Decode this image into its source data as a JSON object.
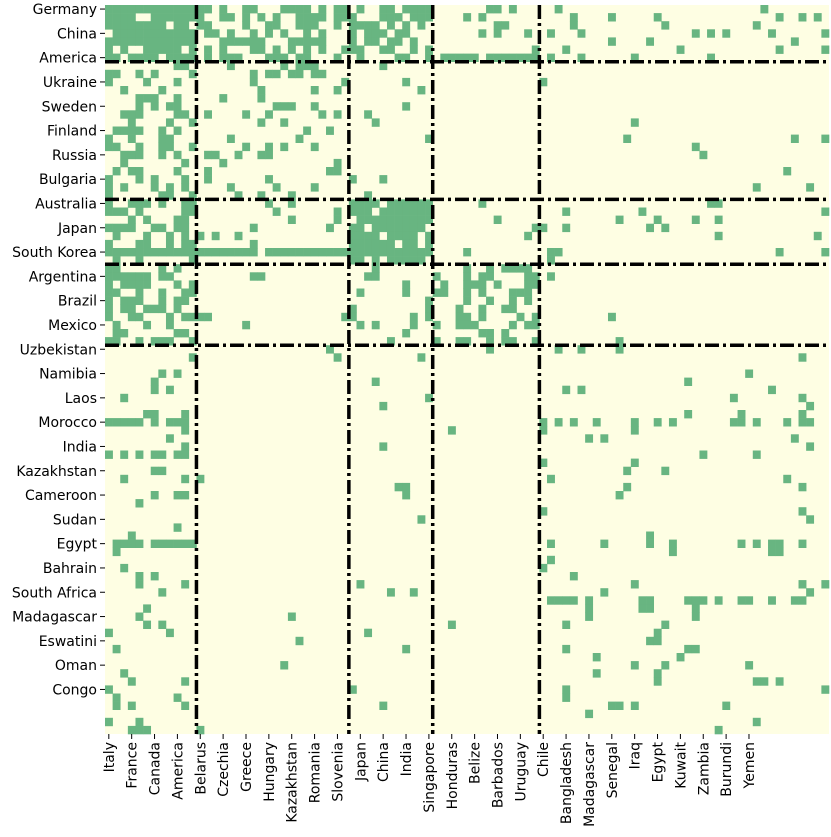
{
  "chart_data": {
    "type": "heatmap",
    "title": "",
    "xlabel": "",
    "ylabel": "",
    "colors": {
      "background": "#fefee3",
      "filled": "#68b581",
      "separator": "#000000"
    },
    "n_rows": 90,
    "n_cols": 95,
    "row_tick_labels": [
      {
        "row": 0,
        "label": "Germany"
      },
      {
        "row": 3,
        "label": "China"
      },
      {
        "row": 6,
        "label": "America"
      },
      {
        "row": 9,
        "label": "Ukraine"
      },
      {
        "row": 12,
        "label": "Sweden"
      },
      {
        "row": 15,
        "label": "Finland"
      },
      {
        "row": 18,
        "label": "Russia"
      },
      {
        "row": 21,
        "label": "Bulgaria"
      },
      {
        "row": 24,
        "label": "Australia"
      },
      {
        "row": 27,
        "label": "Japan"
      },
      {
        "row": 30,
        "label": "South Korea"
      },
      {
        "row": 33,
        "label": "Argentina"
      },
      {
        "row": 36,
        "label": "Brazil"
      },
      {
        "row": 39,
        "label": "Mexico"
      },
      {
        "row": 42,
        "label": "Uzbekistan"
      },
      {
        "row": 45,
        "label": "Namibia"
      },
      {
        "row": 48,
        "label": "Laos"
      },
      {
        "row": 51,
        "label": "Morocco"
      },
      {
        "row": 54,
        "label": "India"
      },
      {
        "row": 57,
        "label": "Kazakhstan"
      },
      {
        "row": 60,
        "label": "Cameroon"
      },
      {
        "row": 63,
        "label": "Sudan"
      },
      {
        "row": 66,
        "label": "Egypt"
      },
      {
        "row": 69,
        "label": "Bahrain"
      },
      {
        "row": 72,
        "label": "South Africa"
      },
      {
        "row": 75,
        "label": "Madagascar"
      },
      {
        "row": 78,
        "label": "Eswatini"
      },
      {
        "row": 81,
        "label": "Oman"
      },
      {
        "row": 84,
        "label": "Congo"
      }
    ],
    "col_tick_labels": [
      {
        "col": 0,
        "label": "Italy"
      },
      {
        "col": 3,
        "label": "France"
      },
      {
        "col": 6,
        "label": "Canada"
      },
      {
        "col": 9,
        "label": "America"
      },
      {
        "col": 12,
        "label": "Belarus"
      },
      {
        "col": 15,
        "label": "Czechia"
      },
      {
        "col": 18,
        "label": "Greece"
      },
      {
        "col": 21,
        "label": "Hungary"
      },
      {
        "col": 24,
        "label": "Kazakhstan"
      },
      {
        "col": 27,
        "label": "Romania"
      },
      {
        "col": 30,
        "label": "Slovenia"
      },
      {
        "col": 33,
        "label": "Japan"
      },
      {
        "col": 36,
        "label": "China"
      },
      {
        "col": 39,
        "label": "India"
      },
      {
        "col": 42,
        "label": "Singapore"
      },
      {
        "col": 45,
        "label": "Honduras"
      },
      {
        "col": 48,
        "label": "Belize"
      },
      {
        "col": 51,
        "label": "Barbados"
      },
      {
        "col": 54,
        "label": "Uruguay"
      },
      {
        "col": 57,
        "label": "Chile"
      },
      {
        "col": 60,
        "label": "Bangladesh"
      },
      {
        "col": 63,
        "label": "Madagascar"
      },
      {
        "col": 66,
        "label": "Senegal"
      },
      {
        "col": 69,
        "label": "Iraq"
      },
      {
        "col": 72,
        "label": "Egypt"
      },
      {
        "col": 75,
        "label": "Kuwait"
      },
      {
        "col": 78,
        "label": "Zambia"
      },
      {
        "col": 81,
        "label": "Burundi"
      },
      {
        "col": 84,
        "label": "Yemen"
      }
    ],
    "horizontal_separators_after_row": [
      6.5,
      23.5,
      31.5,
      41.5
    ],
    "vertical_separators_after_col": [
      11.5,
      31.5,
      42.5,
      56.5
    ],
    "blocks": [
      {
        "rows": [
          0,
          6
        ],
        "cols": [
          0,
          11
        ],
        "density": 0.85
      },
      {
        "rows": [
          0,
          6
        ],
        "cols": [
          12,
          31
        ],
        "density": 0.55
      },
      {
        "rows": [
          0,
          6
        ],
        "cols": [
          32,
          42
        ],
        "density": 0.6
      },
      {
        "rows": [
          0,
          6
        ],
        "cols": [
          43,
          56
        ],
        "density": 0.12
      },
      {
        "rows": [
          0,
          6
        ],
        "cols": [
          57,
          94
        ],
        "density": 0.1
      },
      {
        "rows": [
          7,
          23
        ],
        "cols": [
          0,
          11
        ],
        "density": 0.4
      },
      {
        "rows": [
          7,
          23
        ],
        "cols": [
          12,
          31
        ],
        "density": 0.18
      },
      {
        "rows": [
          7,
          23
        ],
        "cols": [
          32,
          42
        ],
        "density": 0.06
      },
      {
        "rows": [
          7,
          23
        ],
        "cols": [
          43,
          56
        ],
        "density": 0.0
      },
      {
        "rows": [
          7,
          23
        ],
        "cols": [
          57,
          94
        ],
        "density": 0.02
      },
      {
        "rows": [
          24,
          31
        ],
        "cols": [
          0,
          11
        ],
        "density": 0.55
      },
      {
        "rows": [
          24,
          31
        ],
        "cols": [
          12,
          31
        ],
        "density": 0.1
      },
      {
        "rows": [
          24,
          31
        ],
        "cols": [
          32,
          42
        ],
        "density": 0.8
      },
      {
        "rows": [
          24,
          31
        ],
        "cols": [
          43,
          56
        ],
        "density": 0.08
      },
      {
        "rows": [
          24,
          31
        ],
        "cols": [
          57,
          94
        ],
        "density": 0.07
      },
      {
        "rows": [
          32,
          41
        ],
        "cols": [
          0,
          11
        ],
        "density": 0.45
      },
      {
        "rows": [
          32,
          41
        ],
        "cols": [
          12,
          31
        ],
        "density": 0.03
      },
      {
        "rows": [
          32,
          41
        ],
        "cols": [
          32,
          42
        ],
        "density": 0.2
      },
      {
        "rows": [
          32,
          41
        ],
        "cols": [
          43,
          56
        ],
        "density": 0.35
      },
      {
        "rows": [
          32,
          41
        ],
        "cols": [
          57,
          94
        ],
        "density": 0.02
      },
      {
        "rows": [
          42,
          89
        ],
        "cols": [
          0,
          11
        ],
        "density": 0.1
      },
      {
        "rows": [
          42,
          89
        ],
        "cols": [
          12,
          31
        ],
        "density": 0.01
      },
      {
        "rows": [
          42,
          89
        ],
        "cols": [
          32,
          42
        ],
        "density": 0.04
      },
      {
        "rows": [
          42,
          89
        ],
        "cols": [
          43,
          56
        ],
        "density": 0.005
      },
      {
        "rows": [
          42,
          89
        ],
        "cols": [
          57,
          94
        ],
        "density": 0.05
      }
    ],
    "dense_rows": [
      {
        "row": 6,
        "cols": [
          43,
          56
        ],
        "density": 0.8
      },
      {
        "row": 30,
        "cols": [
          0,
          42
        ],
        "density": 0.85
      },
      {
        "row": 51,
        "cols": [
          0,
          11
        ],
        "density": 0.6
      },
      {
        "row": 51,
        "cols": [
          57,
          94
        ],
        "density": 0.3
      },
      {
        "row": 55,
        "cols": [
          0,
          11
        ],
        "density": 0.5
      },
      {
        "row": 66,
        "cols": [
          0,
          11
        ],
        "density": 0.8
      },
      {
        "row": 66,
        "cols": [
          57,
          94
        ],
        "density": 0.35
      },
      {
        "row": 73,
        "cols": [
          57,
          94
        ],
        "density": 0.4
      }
    ]
  }
}
